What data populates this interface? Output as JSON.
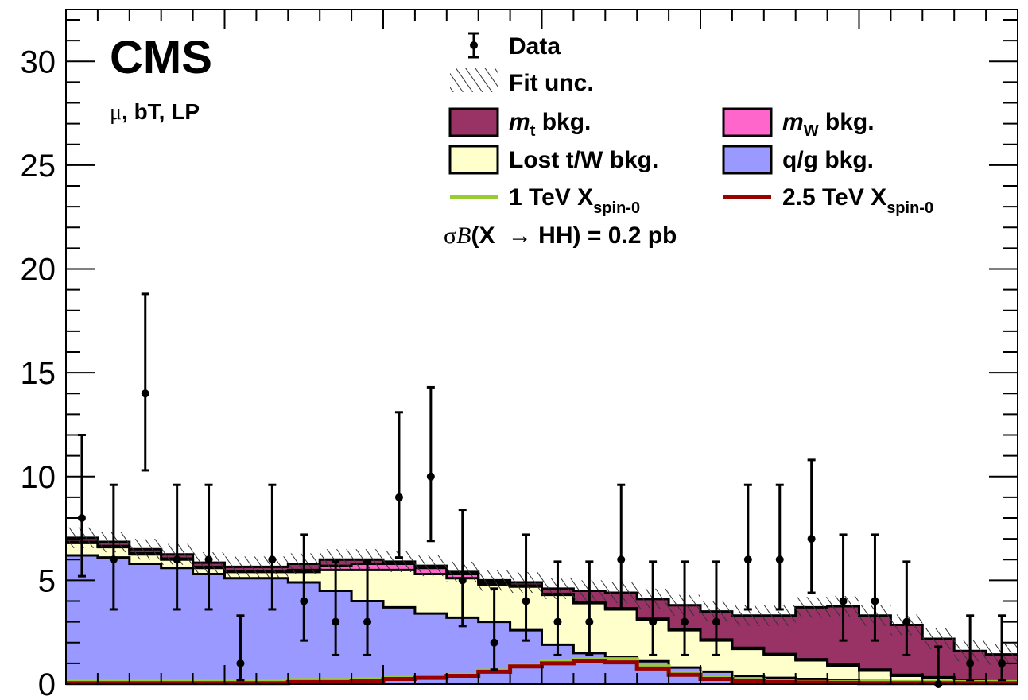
{
  "chart_data": {
    "type": "bar",
    "title": "",
    "xlabel": "",
    "ylabel": "",
    "ylim": [
      0,
      32.5
    ],
    "yticks": [
      0,
      5,
      10,
      15,
      20,
      25,
      30
    ],
    "bins": 30,
    "labels": {
      "experiment": "CMS",
      "selection_greek": "μ",
      "selection_rest": ", bT, LP",
      "xsec_sigma": "σ",
      "xsec_B": "B",
      "xsec_paren": "(X ",
      "xsec_arrow": "→",
      "xsec_rest": " HH) = 0.2 pb"
    },
    "legend": {
      "data": "Data",
      "fit_unc": "Fit unc.",
      "mt_main": "m",
      "mt_sub": "t",
      "mt_rest": " bkg.",
      "mw_main": "m",
      "mw_sub": "W",
      "mw_rest": " bkg.",
      "lost": "Lost t/W bkg.",
      "qg": "q/g bkg.",
      "sig1_main": "1 TeV X",
      "sig1_sub": "spin-0",
      "sig2_main": "2.5 TeV X",
      "sig2_sub": "spin-0"
    },
    "colors": {
      "mt": "#993366",
      "mw": "#ff66cc",
      "lost": "#ffffcc",
      "qg": "#9999ff",
      "sig1": "#99cc33",
      "sig2": "#990000",
      "unc": "#333333"
    },
    "stack": {
      "qg": [
        6.2,
        6.1,
        5.8,
        5.6,
        5.3,
        5.1,
        5.1,
        4.9,
        4.5,
        4.0,
        3.7,
        3.4,
        3.2,
        3.0,
        2.6,
        1.9,
        1.5,
        1.3,
        1.1,
        0.8,
        0.6,
        0.4,
        0.3,
        0.25,
        0.2,
        0.15,
        0.1,
        0.08,
        0.05,
        0.03
      ],
      "lost": [
        0.6,
        0.5,
        0.45,
        0.4,
        0.3,
        0.3,
        0.3,
        0.5,
        1.0,
        1.5,
        1.8,
        1.9,
        1.9,
        1.8,
        2.1,
        2.4,
        2.4,
        2.3,
        2.0,
        1.8,
        1.5,
        1.3,
        1.1,
        0.9,
        0.7,
        0.5,
        0.3,
        0.2,
        0.1,
        0.05
      ],
      "mw": [
        0.05,
        0.05,
        0.05,
        0.05,
        0.05,
        0.05,
        0.05,
        0.1,
        0.2,
        0.3,
        0.3,
        0.3,
        0.2,
        0.1,
        0.05,
        0.05,
        0.05,
        0.05,
        0.05,
        0.05,
        0.05,
        0.05,
        0.05,
        0.05,
        0.05,
        0.05,
        0.05,
        0.05,
        0.05,
        0.05
      ],
      "mt": [
        0.2,
        0.2,
        0.2,
        0.2,
        0.2,
        0.2,
        0.2,
        0.3,
        0.3,
        0.2,
        0.1,
        0.1,
        0.1,
        0.1,
        0.15,
        0.25,
        0.55,
        0.75,
        0.95,
        1.15,
        1.35,
        1.55,
        1.85,
        2.5,
        2.8,
        2.6,
        2.4,
        1.85,
        1.4,
        1.3
      ]
    },
    "unc_band": 0.5,
    "signal_1tev": [
      0.15,
      0.15,
      0.15,
      0.15,
      0.15,
      0.15,
      0.15,
      0.2,
      0.2,
      0.25,
      0.3,
      0.35,
      0.45,
      0.65,
      0.9,
      1.1,
      1.2,
      1.2,
      0.85,
      0.55,
      0.3,
      0.2,
      0.15,
      0.1,
      0.1,
      0.1,
      0.1,
      0.1,
      0.1,
      0.1
    ],
    "signal_2p5tev": [
      0.05,
      0.05,
      0.05,
      0.05,
      0.05,
      0.05,
      0.05,
      0.1,
      0.1,
      0.15,
      0.25,
      0.3,
      0.4,
      0.6,
      0.85,
      1.0,
      1.1,
      1.05,
      0.75,
      0.45,
      0.25,
      0.15,
      0.1,
      0.08,
      0.06,
      0.05,
      0.05,
      0.05,
      0.05,
      0.05
    ],
    "data": [
      {
        "x": 0.5,
        "y": 8,
        "lo": 2.8,
        "hi": 4.0
      },
      {
        "x": 1.5,
        "y": 6,
        "lo": 2.4,
        "hi": 3.6
      },
      {
        "x": 2.5,
        "y": 14,
        "lo": 3.7,
        "hi": 4.8
      },
      {
        "x": 3.5,
        "y": 6,
        "lo": 2.4,
        "hi": 3.6
      },
      {
        "x": 4.5,
        "y": 6,
        "lo": 2.4,
        "hi": 3.6
      },
      {
        "x": 5.5,
        "y": 1,
        "lo": 0.8,
        "hi": 2.3
      },
      {
        "x": 6.5,
        "y": 6,
        "lo": 2.4,
        "hi": 3.6
      },
      {
        "x": 7.5,
        "y": 4,
        "lo": 1.9,
        "hi": 3.2
      },
      {
        "x": 8.5,
        "y": 3,
        "lo": 1.6,
        "hi": 2.9
      },
      {
        "x": 9.5,
        "y": 3,
        "lo": 1.6,
        "hi": 2.9
      },
      {
        "x": 10.5,
        "y": 9,
        "lo": 2.9,
        "hi": 4.1
      },
      {
        "x": 11.5,
        "y": 10,
        "lo": 3.1,
        "hi": 4.3
      },
      {
        "x": 12.5,
        "y": 5,
        "lo": 2.2,
        "hi": 3.4
      },
      {
        "x": 13.5,
        "y": 2,
        "lo": 1.3,
        "hi": 2.6
      },
      {
        "x": 14.5,
        "y": 4,
        "lo": 1.9,
        "hi": 3.2
      },
      {
        "x": 15.5,
        "y": 3,
        "lo": 1.6,
        "hi": 2.9
      },
      {
        "x": 16.5,
        "y": 3,
        "lo": 1.6,
        "hi": 2.9
      },
      {
        "x": 17.5,
        "y": 6,
        "lo": 2.4,
        "hi": 3.6
      },
      {
        "x": 18.5,
        "y": 3,
        "lo": 1.6,
        "hi": 2.9
      },
      {
        "x": 19.5,
        "y": 3,
        "lo": 1.6,
        "hi": 2.9
      },
      {
        "x": 20.5,
        "y": 3,
        "lo": 1.6,
        "hi": 2.9
      },
      {
        "x": 21.5,
        "y": 6,
        "lo": 2.4,
        "hi": 3.6
      },
      {
        "x": 22.5,
        "y": 6,
        "lo": 2.4,
        "hi": 3.6
      },
      {
        "x": 23.5,
        "y": 7,
        "lo": 2.6,
        "hi": 3.8
      },
      {
        "x": 24.5,
        "y": 4,
        "lo": 1.9,
        "hi": 3.2
      },
      {
        "x": 25.5,
        "y": 4,
        "lo": 1.9,
        "hi": 3.2
      },
      {
        "x": 26.5,
        "y": 3,
        "lo": 1.6,
        "hi": 2.9
      },
      {
        "x": 27.5,
        "y": 0,
        "lo": 0,
        "hi": 1.8
      },
      {
        "x": 28.5,
        "y": 1,
        "lo": 0.8,
        "hi": 2.3
      },
      {
        "x": 29.5,
        "y": 1,
        "lo": 0.8,
        "hi": 2.3
      }
    ]
  }
}
